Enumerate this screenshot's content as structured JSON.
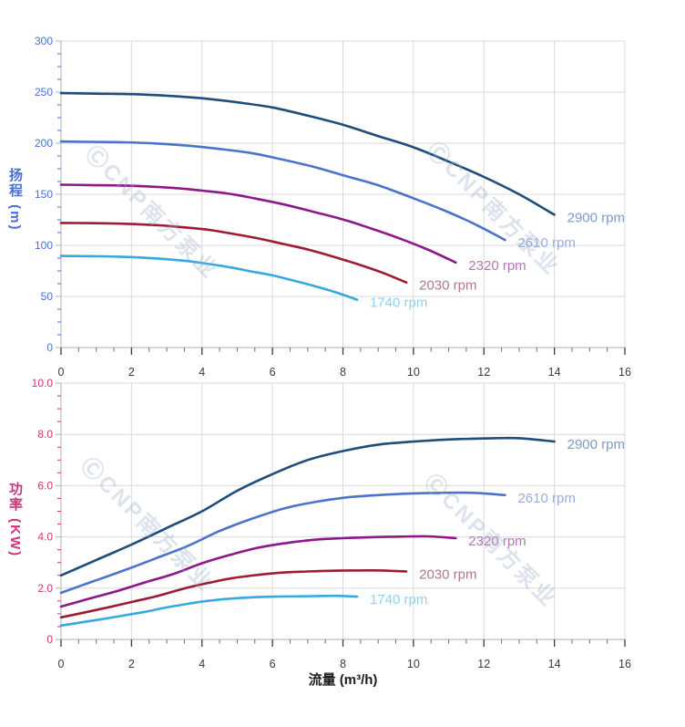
{
  "watermark": {
    "text": "ⒸCNP南方泵业"
  },
  "x_axis_title": "流量 (m³/h)",
  "chart_data": [
    {
      "type": "line",
      "id": "head-vs-flow",
      "title": "",
      "xlabel": "流量 (m³/h)",
      "ylabel": "扬程 (m)",
      "ylabel_color": "#4a6fd8",
      "xlim": [
        0,
        16
      ],
      "ylim": [
        0,
        300
      ],
      "x_major": 2,
      "x_minor_divisions": 4,
      "y_major": 50,
      "y_minor_divisions": 4,
      "grid": true,
      "legend_position": "at-line-ends",
      "x_tick_labels": [
        "0",
        "2",
        "4",
        "6",
        "8",
        "10",
        "12",
        "14",
        "16"
      ],
      "y_tick_labels": [
        "0",
        "50",
        "100",
        "150",
        "200",
        "250",
        "300"
      ],
      "series": [
        {
          "name": "2900 rpm",
          "color": "#1d4d7b",
          "label_color": "#7b9dc4",
          "points": [
            [
              0,
              249
            ],
            [
              1,
              248.5
            ],
            [
              2,
              248
            ],
            [
              3,
              246.5
            ],
            [
              4,
              244
            ],
            [
              5,
              240
            ],
            [
              6,
              235
            ],
            [
              7,
              227
            ],
            [
              8,
              218
            ],
            [
              9,
              207
            ],
            [
              10,
              196
            ],
            [
              11,
              182
            ],
            [
              12,
              167
            ],
            [
              13,
              150
            ],
            [
              14,
              130
            ]
          ]
        },
        {
          "name": "2610 rpm",
          "color": "#4a74c9",
          "label_color": "#96b0e0",
          "points": [
            [
              0,
              201.7
            ],
            [
              0.9,
              201.3
            ],
            [
              1.8,
              200.9
            ],
            [
              2.7,
              199.7
            ],
            [
              3.6,
              197.6
            ],
            [
              4.5,
              194.4
            ],
            [
              5.4,
              190.4
            ],
            [
              6.3,
              183.9
            ],
            [
              7.2,
              176.6
            ],
            [
              8.1,
              167.7
            ],
            [
              9,
              158.8
            ],
            [
              9.9,
              147.4
            ],
            [
              10.8,
              135.3
            ],
            [
              11.7,
              121.5
            ],
            [
              12.6,
              105.3
            ]
          ]
        },
        {
          "name": "2320 rpm",
          "color": "#8d188a",
          "label_color": "#ba74b6",
          "points": [
            [
              0,
              159.4
            ],
            [
              0.8,
              159
            ],
            [
              1.6,
              158.7
            ],
            [
              2.4,
              157.8
            ],
            [
              3.2,
              156.2
            ],
            [
              4,
              153.6
            ],
            [
              4.8,
              150.4
            ],
            [
              5.6,
              145.3
            ],
            [
              6.4,
              139.5
            ],
            [
              7.2,
              132.5
            ],
            [
              8,
              125.4
            ],
            [
              8.8,
              116.5
            ],
            [
              9.6,
              106.9
            ],
            [
              10.4,
              96
            ],
            [
              11.2,
              83.2
            ]
          ]
        },
        {
          "name": "2030 rpm",
          "color": "#9e1b35",
          "label_color": "#b17886",
          "points": [
            [
              0,
              122
            ],
            [
              0.7,
              121.8
            ],
            [
              1.4,
              121.5
            ],
            [
              2.1,
              120.8
            ],
            [
              2.8,
              119.6
            ],
            [
              3.5,
              117.6
            ],
            [
              4.2,
              115.2
            ],
            [
              4.9,
              111.2
            ],
            [
              5.6,
              106.8
            ],
            [
              6.3,
              101.4
            ],
            [
              7,
              96
            ],
            [
              7.7,
              89.2
            ],
            [
              8.4,
              81.8
            ],
            [
              9.1,
              73.5
            ],
            [
              9.8,
              63.7
            ]
          ]
        },
        {
          "name": "1740 rpm",
          "color": "#36a9e1",
          "label_color": "#93d0f0",
          "points": [
            [
              0,
              89.6
            ],
            [
              0.6,
              89.5
            ],
            [
              1.2,
              89.3
            ],
            [
              1.8,
              88.7
            ],
            [
              2.4,
              87.8
            ],
            [
              3,
              86.4
            ],
            [
              3.6,
              84.6
            ],
            [
              4.2,
              81.7
            ],
            [
              4.8,
              78.5
            ],
            [
              5.4,
              74.5
            ],
            [
              6,
              70.6
            ],
            [
              6.6,
              65.5
            ],
            [
              7.2,
              60.1
            ],
            [
              7.8,
              54
            ],
            [
              8.4,
              46.8
            ]
          ]
        }
      ]
    },
    {
      "type": "line",
      "id": "power-vs-flow",
      "title": "",
      "xlabel": "流量 (m³/h)",
      "ylabel": "功率 (KW)",
      "ylabel_color": "#cf3579",
      "xlim": [
        0,
        16
      ],
      "ylim": [
        0,
        10
      ],
      "x_major": 2,
      "x_minor_divisions": 4,
      "y_major": 2,
      "y_minor_divisions": 4,
      "grid": true,
      "legend_position": "at-line-ends",
      "x_tick_labels": [
        "0",
        "2",
        "4",
        "6",
        "8",
        "10",
        "12",
        "14",
        "16"
      ],
      "y_tick_labels": [
        "0",
        "2.0",
        "4.0",
        "6.0",
        "8.0",
        "10.0"
      ],
      "series": [
        {
          "name": "2900 rpm",
          "color": "#1d4d7b",
          "label_color": "#7b9dc4",
          "points": [
            [
              0,
              2.5
            ],
            [
              1,
              3.1
            ],
            [
              2,
              3.7
            ],
            [
              3,
              4.35
            ],
            [
              4,
              5
            ],
            [
              5,
              5.8
            ],
            [
              6,
              6.45
            ],
            [
              7,
              7
            ],
            [
              8,
              7.35
            ],
            [
              9,
              7.6
            ],
            [
              10,
              7.72
            ],
            [
              11,
              7.8
            ],
            [
              12,
              7.84
            ],
            [
              13,
              7.85
            ],
            [
              14,
              7.72
            ]
          ]
        },
        {
          "name": "2610 rpm",
          "color": "#4a74c9",
          "label_color": "#96b0e0",
          "points": [
            [
              0,
              1.82
            ],
            [
              0.9,
              2.26
            ],
            [
              1.8,
              2.7
            ],
            [
              2.7,
              3.17
            ],
            [
              3.6,
              3.65
            ],
            [
              4.5,
              4.23
            ],
            [
              5.4,
              4.7
            ],
            [
              6.3,
              5.1
            ],
            [
              7.2,
              5.36
            ],
            [
              8.1,
              5.54
            ],
            [
              9,
              5.63
            ],
            [
              9.9,
              5.69
            ],
            [
              10.8,
              5.72
            ],
            [
              11.7,
              5.72
            ],
            [
              12.6,
              5.63
            ]
          ]
        },
        {
          "name": "2320 rpm",
          "color": "#8d188a",
          "label_color": "#ba74b6",
          "points": [
            [
              0,
              1.28
            ],
            [
              0.8,
              1.59
            ],
            [
              1.6,
              1.89
            ],
            [
              2.4,
              2.23
            ],
            [
              3.2,
              2.56
            ],
            [
              4,
              2.97
            ],
            [
              4.8,
              3.3
            ],
            [
              5.6,
              3.58
            ],
            [
              6.4,
              3.76
            ],
            [
              7.2,
              3.89
            ],
            [
              8,
              3.95
            ],
            [
              8.8,
              3.99
            ],
            [
              9.6,
              4.01
            ],
            [
              10.4,
              4.02
            ],
            [
              11.2,
              3.95
            ]
          ]
        },
        {
          "name": "2030 rpm",
          "color": "#9e1b35",
          "label_color": "#b17886",
          "points": [
            [
              0,
              0.86
            ],
            [
              0.7,
              1.06
            ],
            [
              1.4,
              1.27
            ],
            [
              2.1,
              1.49
            ],
            [
              2.8,
              1.72
            ],
            [
              3.5,
              1.99
            ],
            [
              4.2,
              2.21
            ],
            [
              4.9,
              2.4
            ],
            [
              5.6,
              2.52
            ],
            [
              6.3,
              2.61
            ],
            [
              7,
              2.65
            ],
            [
              7.7,
              2.68
            ],
            [
              8.4,
              2.69
            ],
            [
              9.1,
              2.69
            ],
            [
              9.8,
              2.65
            ]
          ]
        },
        {
          "name": "1740 rpm",
          "color": "#36a9e1",
          "label_color": "#93d0f0",
          "points": [
            [
              0,
              0.54
            ],
            [
              0.6,
              0.67
            ],
            [
              1.2,
              0.8
            ],
            [
              1.8,
              0.94
            ],
            [
              2.4,
              1.08
            ],
            [
              3,
              1.25
            ],
            [
              3.6,
              1.39
            ],
            [
              4.2,
              1.51
            ],
            [
              4.8,
              1.59
            ],
            [
              5.4,
              1.64
            ],
            [
              6,
              1.67
            ],
            [
              6.6,
              1.68
            ],
            [
              7.2,
              1.69
            ],
            [
              7.8,
              1.7
            ],
            [
              8.4,
              1.67
            ]
          ]
        }
      ]
    }
  ]
}
